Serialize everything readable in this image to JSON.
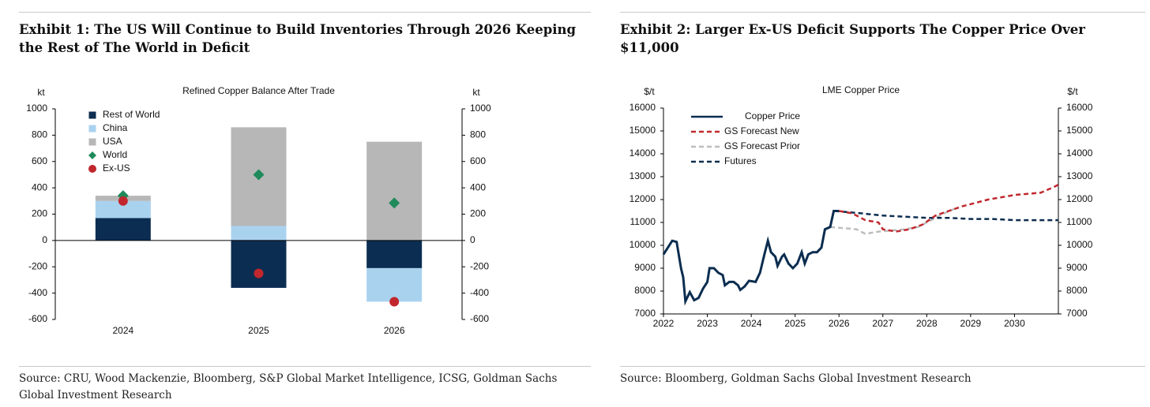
{
  "chart_data": [
    {
      "type": "bar",
      "heading": "Exhibit 1: The US Will Continue to Build Inventories Through 2026 Keeping the Rest of The World in Deficit",
      "title": "Refined Copper Balance After Trade",
      "source": "Source: CRU, Wood Mackenzie, Bloomberg, S&P Global Market Intelligence, ICSG, Goldman Sachs Global Investment Research",
      "y_label": "kt",
      "y2_label": "kt",
      "categories": [
        "2024",
        "2025",
        "2026"
      ],
      "series": [
        {
          "name": "Rest of World",
          "color": "#0c2d52",
          "kind": "bar",
          "values": [
            170,
            -360,
            -210
          ]
        },
        {
          "name": "China",
          "color": "#a9d2ef",
          "kind": "bar",
          "values": [
            130,
            110,
            -255
          ]
        },
        {
          "name": "USA",
          "color": "#b7b7b7",
          "kind": "bar",
          "values": [
            40,
            750,
            750
          ]
        },
        {
          "name": "World",
          "color": "#1f8a5a",
          "kind": "diamond",
          "values": [
            340,
            500,
            285
          ]
        },
        {
          "name": "Ex-US",
          "color": "#c1272d",
          "kind": "circle",
          "values": [
            300,
            -250,
            -465
          ]
        }
      ],
      "ylim": [
        -600,
        1000
      ],
      "yticks": [
        -600,
        -400,
        -200,
        0,
        200,
        400,
        600,
        800,
        1000
      ],
      "y2lim": [
        -600,
        1000
      ],
      "y2ticks": [
        -600,
        -400,
        -200,
        0,
        200,
        400,
        600,
        800,
        1000
      ],
      "legend": "upper left"
    },
    {
      "type": "line",
      "heading": "Exhibit 2: Larger Ex-US Deficit Supports The Copper Price Over $11,000",
      "title": "LME Copper Price",
      "source": "Source: Bloomberg, Goldman Sachs Global Investment Research",
      "y_label": "$/t",
      "y2_label": "$/t",
      "series": [
        {
          "name": "Copper Price",
          "color": "#0b2d4f",
          "dashed": false,
          "x": [
            2022.0,
            2022.1,
            2022.2,
            2022.3,
            2022.4,
            2022.45,
            2022.5,
            2022.6,
            2022.7,
            2022.8,
            2022.9,
            2023.0,
            2023.05,
            2023.15,
            2023.25,
            2023.35,
            2023.4,
            2023.5,
            2023.6,
            2023.7,
            2023.75,
            2023.85,
            2023.95,
            2024.1,
            2024.2,
            2024.3,
            2024.38,
            2024.45,
            2024.55,
            2024.6,
            2024.7,
            2024.75,
            2024.85,
            2024.95,
            2025.05,
            2025.15,
            2025.22,
            2025.3,
            2025.4,
            2025.5,
            2025.6,
            2025.68,
            2025.8,
            2025.88,
            2026.0
          ],
          "values": [
            9600,
            9900,
            10200,
            10150,
            9000,
            8600,
            7550,
            7950,
            7600,
            7700,
            8100,
            8400,
            9000,
            9000,
            8800,
            8700,
            8250,
            8400,
            8400,
            8250,
            8050,
            8200,
            8450,
            8400,
            8800,
            9600,
            10200,
            9700,
            9500,
            9100,
            9500,
            9600,
            9200,
            9000,
            9200,
            9700,
            9200,
            9600,
            9700,
            9700,
            9900,
            10700,
            10800,
            11500,
            11500
          ]
        },
        {
          "name": "GS Forecast New",
          "color": "#c0282e",
          "dashed": true,
          "x": [
            2026.0,
            2026.3,
            2026.6,
            2026.9,
            2027.0,
            2027.3,
            2027.6,
            2027.9,
            2028.2,
            2028.5,
            2028.8,
            2029.1,
            2029.4,
            2029.7,
            2030.0,
            2030.3,
            2030.6,
            2030.9,
            2031.0
          ],
          "values": [
            11500,
            11400,
            11100,
            11000,
            10700,
            10600,
            10700,
            10900,
            11300,
            11500,
            11700,
            11850,
            12000,
            12100,
            12200,
            12250,
            12300,
            12550,
            12650
          ]
        },
        {
          "name": "GS Forecast Prior",
          "color": "#bdbdbd",
          "dashed": true,
          "x": [
            2025.8,
            2026.1,
            2026.4,
            2026.6,
            2026.9,
            2027.2,
            2027.5,
            2027.8,
            2028.1,
            2028.4,
            2028.7
          ],
          "values": [
            10800,
            10750,
            10700,
            10500,
            10600,
            10650,
            10700,
            10800,
            11100,
            11400,
            11650
          ]
        },
        {
          "name": "Futures",
          "color": "#0b2d4f",
          "dashed": true,
          "x": [
            2025.9,
            2026.2,
            2026.5,
            2027.0,
            2027.5,
            2028.0,
            2028.5,
            2029.0,
            2029.5,
            2030.0,
            2030.5,
            2031.0
          ],
          "values": [
            11500,
            11450,
            11400,
            11300,
            11250,
            11200,
            11200,
            11150,
            11150,
            11100,
            11100,
            11100
          ]
        }
      ],
      "xlim": [
        2022,
        2031
      ],
      "xticks": [
        2022,
        2023,
        2024,
        2025,
        2026,
        2027,
        2028,
        2029,
        2030
      ],
      "ylim": [
        7000,
        16000
      ],
      "yticks": [
        7000,
        8000,
        9000,
        10000,
        11000,
        12000,
        13000,
        14000,
        15000,
        16000
      ],
      "y2lim": [
        7000,
        16000
      ],
      "y2ticks": [
        7000,
        8000,
        9000,
        10000,
        11000,
        12000,
        13000,
        14000,
        15000,
        16000
      ],
      "legend": "upper left"
    }
  ]
}
